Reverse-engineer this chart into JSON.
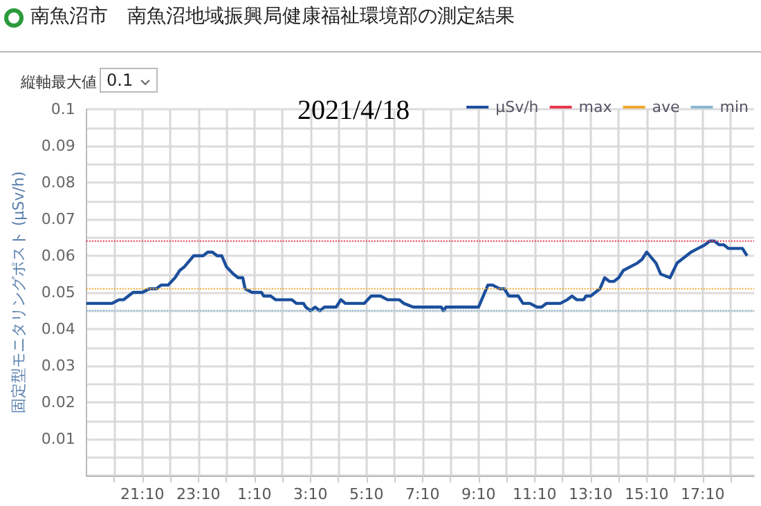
{
  "chart_data": {
    "type": "line",
    "title": "南魚沼市　南魚沼地域振興局健康福祉環境部の測定結果",
    "subtitle": "2021/4/18",
    "ylabel": "固定型モニタリングポスト (µSv/h)",
    "annotations": [
      "縦軸最大値",
      "0.1"
    ],
    "xlim": [
      "2021-04-17T19:10",
      "2021-04-18T19:00"
    ],
    "xticks": [
      {
        "value": "2021-04-17T20:10",
        "label": null
      },
      {
        "value": "2021-04-17T21:10",
        "label": "21:10"
      },
      {
        "value": "2021-04-17T22:10",
        "label": null
      },
      {
        "value": "2021-04-17T23:10",
        "label": "23:10"
      },
      {
        "value": "2021-04-18T00:10",
        "label": null
      },
      {
        "value": "2021-04-18T01:10",
        "label": "1:10"
      },
      {
        "value": "2021-04-18T02:10",
        "label": null
      },
      {
        "value": "2021-04-18T03:10",
        "label": "3:10"
      },
      {
        "value": "2021-04-18T04:10",
        "label": null
      },
      {
        "value": "2021-04-18T05:10",
        "label": "5:10"
      },
      {
        "value": "2021-04-18T06:10",
        "label": null
      },
      {
        "value": "2021-04-18T07:10",
        "label": "7:10"
      },
      {
        "value": "2021-04-18T08:10",
        "label": null
      },
      {
        "value": "2021-04-18T09:10",
        "label": "9:10"
      },
      {
        "value": "2021-04-18T10:10",
        "label": null
      },
      {
        "value": "2021-04-18T11:10",
        "label": "11:10"
      },
      {
        "value": "2021-04-18T12:10",
        "label": null
      },
      {
        "value": "2021-04-18T13:10",
        "label": "13:10"
      },
      {
        "value": "2021-04-18T14:10",
        "label": null
      },
      {
        "value": "2021-04-18T15:10",
        "label": "15:10"
      },
      {
        "value": "2021-04-18T16:10",
        "label": null
      },
      {
        "value": "2021-04-18T17:10",
        "label": "17:10"
      },
      {
        "value": "2021-04-18T18:10",
        "label": null
      }
    ],
    "ylim": [
      0,
      0.1
    ],
    "yticks": [
      {
        "value": 0,
        "label": null
      },
      {
        "value": 0.005,
        "label": null
      },
      0.01,
      {
        "value": 0.015,
        "label": null
      },
      0.02,
      {
        "value": 0.025,
        "label": null
      },
      0.03,
      {
        "value": 0.035,
        "label": null
      },
      0.04,
      {
        "value": 0.045,
        "label": null
      },
      0.05,
      {
        "value": 0.055,
        "label": null
      },
      0.06,
      {
        "value": 0.065,
        "label": null
      },
      0.07,
      {
        "value": 0.075,
        "label": null
      },
      0.08,
      {
        "value": 0.085,
        "label": null
      },
      0.09,
      {
        "value": 0.095,
        "label": null
      },
      0.1
    ],
    "grid": true,
    "legend": "top right",
    "line_style": "solid",
    "marker": "none",
    "series": [
      {
        "name": "µSv/h",
        "color": "#1c4f9c",
        "x": [
          "2021-04-17T19:10",
          "2021-04-17T20:05",
          "2021-04-17T20:20",
          "2021-04-17T20:30",
          "2021-04-17T20:50",
          "2021-04-17T21:10",
          "2021-04-17T21:25",
          "2021-04-17T21:40",
          "2021-04-17T21:50",
          "2021-04-17T22:05",
          "2021-04-17T22:20",
          "2021-04-17T22:30",
          "2021-04-17T22:40",
          "2021-04-17T23:00",
          "2021-04-17T23:20",
          "2021-04-17T23:30",
          "2021-04-17T23:40",
          "2021-04-17T23:50",
          "2021-04-18T00:00",
          "2021-04-18T00:10",
          "2021-04-18T00:25",
          "2021-04-18T00:35",
          "2021-04-18T00:45",
          "2021-04-18T00:50",
          "2021-04-18T01:05",
          "2021-04-18T01:25",
          "2021-04-18T01:30",
          "2021-04-18T01:45",
          "2021-04-18T01:55",
          "2021-04-18T02:30",
          "2021-04-18T02:40",
          "2021-04-18T02:55",
          "2021-04-18T03:00",
          "2021-04-18T03:10",
          "2021-04-18T03:20",
          "2021-04-18T03:30",
          "2021-04-18T03:40",
          "2021-04-18T04:05",
          "2021-04-18T04:15",
          "2021-04-18T04:25",
          "2021-04-18T05:05",
          "2021-04-18T05:20",
          "2021-04-18T05:40",
          "2021-04-18T05:55",
          "2021-04-18T06:20",
          "2021-04-18T06:30",
          "2021-04-18T06:50",
          "2021-04-18T07:50",
          "2021-04-18T07:55",
          "2021-04-18T08:00",
          "2021-04-18T09:10",
          "2021-04-18T09:30",
          "2021-04-18T09:40",
          "2021-04-18T09:55",
          "2021-04-18T10:05",
          "2021-04-18T10:15",
          "2021-04-18T10:35",
          "2021-04-18T10:45",
          "2021-04-18T11:00",
          "2021-04-18T11:15",
          "2021-04-18T11:25",
          "2021-04-18T11:35",
          "2021-04-18T12:05",
          "2021-04-18T12:20",
          "2021-04-18T12:30",
          "2021-04-18T12:40",
          "2021-04-18T12:55",
          "2021-04-18T13:00",
          "2021-04-18T13:10",
          "2021-04-18T13:20",
          "2021-04-18T13:30",
          "2021-04-18T13:40",
          "2021-04-18T13:50",
          "2021-04-18T14:00",
          "2021-04-18T14:10",
          "2021-04-18T14:20",
          "2021-04-18T14:35",
          "2021-04-18T14:50",
          "2021-04-18T15:00",
          "2021-04-18T15:10",
          "2021-04-18T15:30",
          "2021-04-18T15:40",
          "2021-04-18T16:00",
          "2021-04-18T16:15",
          "2021-04-18T16:25",
          "2021-04-18T16:45",
          "2021-04-18T17:00",
          "2021-04-18T17:15",
          "2021-04-18T17:25",
          "2021-04-18T17:35",
          "2021-04-18T17:45",
          "2021-04-18T17:55",
          "2021-04-18T18:05",
          "2021-04-18T18:35",
          "2021-04-18T18:45"
        ],
        "values": [
          0.047,
          0.047,
          0.048,
          0.048,
          0.05,
          0.05,
          0.051,
          0.051,
          0.052,
          0.052,
          0.054,
          0.056,
          0.057,
          0.06,
          0.06,
          0.061,
          0.061,
          0.06,
          0.06,
          0.057,
          0.055,
          0.054,
          0.054,
          0.051,
          0.05,
          0.05,
          0.049,
          0.049,
          0.048,
          0.048,
          0.047,
          0.047,
          0.046,
          0.045,
          0.046,
          0.045,
          0.046,
          0.046,
          0.048,
          0.047,
          0.047,
          0.049,
          0.049,
          0.048,
          0.048,
          0.047,
          0.046,
          0.046,
          0.045,
          0.046,
          0.046,
          0.052,
          0.052,
          0.051,
          0.051,
          0.049,
          0.049,
          0.047,
          0.047,
          0.046,
          0.046,
          0.047,
          0.047,
          0.048,
          0.049,
          0.048,
          0.048,
          0.049,
          0.049,
          0.05,
          0.051,
          0.054,
          0.053,
          0.053,
          0.054,
          0.056,
          0.057,
          0.058,
          0.059,
          0.061,
          0.058,
          0.055,
          0.054,
          0.058,
          0.059,
          0.061,
          0.062,
          0.063,
          0.064,
          0.064,
          0.063,
          0.063,
          0.062,
          0.062,
          0.06
        ]
      }
    ],
    "ref_lines": [
      {
        "axis": "y",
        "value": 0.064,
        "label": "max",
        "color": "#e8384f",
        "line_style": "dotted"
      },
      {
        "axis": "y",
        "value": 0.051,
        "label": "ave",
        "color": "#f0a830",
        "line_style": "dotted"
      },
      {
        "axis": "y",
        "value": 0.045,
        "label": "min",
        "color": "#8ab8d0",
        "line_style": "dotted"
      }
    ]
  }
}
